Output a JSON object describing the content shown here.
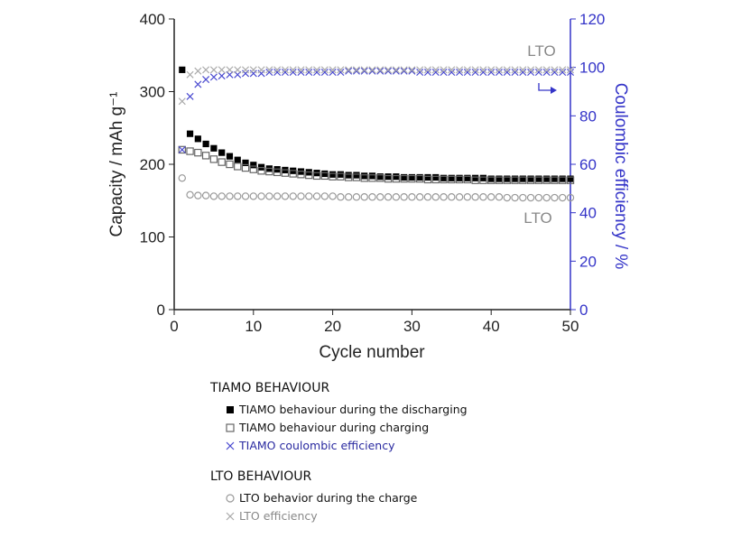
{
  "chart_data": {
    "type": "scatter",
    "x_label": "Cycle number",
    "y_label": "Capacity / mAh g⁻¹",
    "y2_label": "Coulombic efficiency / %",
    "y2_color": "#3434c8",
    "xlim": [
      0,
      50
    ],
    "xticks": [
      0,
      10,
      20,
      30,
      40,
      50
    ],
    "ylim": [
      0,
      400
    ],
    "yticks": [
      0,
      100,
      200,
      300,
      400
    ],
    "y2lim": [
      0,
      120
    ],
    "y2ticks": [
      0,
      20,
      40,
      60,
      80,
      100,
      120
    ],
    "annotations": [
      "LTO",
      "LTO"
    ],
    "x": [
      1,
      2,
      3,
      4,
      5,
      6,
      7,
      8,
      9,
      10,
      11,
      12,
      13,
      14,
      15,
      16,
      17,
      18,
      19,
      20,
      21,
      22,
      23,
      24,
      25,
      26,
      27,
      28,
      29,
      30,
      31,
      32,
      33,
      34,
      35,
      36,
      37,
      38,
      39,
      40,
      41,
      42,
      43,
      44,
      45,
      46,
      47,
      48,
      49,
      50
    ],
    "legend_groups": [
      {
        "title": "TIAMO BEHAVIOUR",
        "series": [
          0,
          1,
          2
        ]
      },
      {
        "title": "LTO BEHAVIOUR",
        "series": [
          3,
          4
        ]
      }
    ],
    "series": [
      {
        "name": "TIAMO behaviour during the discharging",
        "marker": "square-filled",
        "color": "#000000",
        "label_color": "#111111",
        "values": [
          330,
          242,
          235,
          228,
          222,
          216,
          211,
          206,
          202,
          199,
          196,
          194,
          193,
          192,
          191,
          190,
          189,
          188,
          187,
          186,
          186,
          185,
          185,
          184,
          184,
          183,
          183,
          183,
          182,
          182,
          182,
          182,
          182,
          181,
          181,
          181,
          181,
          181,
          181,
          180,
          180,
          180,
          180,
          180,
          180,
          180,
          180,
          180,
          180,
          180
        ]
      },
      {
        "name": "TIAMO behaviour during charging",
        "marker": "square-open",
        "color": "#666666",
        "label_color": "#111111",
        "values": [
          220,
          218,
          216,
          212,
          207,
          203,
          200,
          197,
          195,
          193,
          191,
          190,
          189,
          188,
          187,
          186,
          185,
          184,
          184,
          183,
          183,
          182,
          182,
          181,
          181,
          181,
          180,
          180,
          180,
          180,
          180,
          179,
          179,
          179,
          179,
          179,
          179,
          178,
          178,
          178,
          178,
          178,
          178,
          178,
          178,
          178,
          178,
          178,
          178,
          178
        ]
      },
      {
        "name": "TIAMO coulombic efficiency",
        "marker": "x",
        "color": "#4a4ad0",
        "label_color": "#2a2aa0",
        "axis": "y2",
        "values": [
          66,
          88,
          93,
          95,
          96,
          96.5,
          97,
          97,
          97.5,
          97.5,
          97.5,
          98,
          98,
          98,
          98,
          98,
          98,
          98,
          98,
          98,
          98,
          98.5,
          98.5,
          98.5,
          98.5,
          98.5,
          98.5,
          98.5,
          98.5,
          98.5,
          98,
          98,
          98,
          98,
          98,
          98,
          98,
          98,
          98,
          98,
          98,
          98,
          98,
          98,
          98,
          98,
          98,
          98,
          98,
          98
        ]
      },
      {
        "name": "LTO behavior during the charge",
        "marker": "circle",
        "color": "#999999",
        "label_color": "#111111",
        "values": [
          181,
          158,
          157,
          157,
          156,
          156,
          156,
          156,
          156,
          156,
          156,
          156,
          156,
          156,
          156,
          156,
          156,
          156,
          156,
          156,
          155,
          155,
          155,
          155,
          155,
          155,
          155,
          155,
          155,
          155,
          155,
          155,
          155,
          155,
          155,
          155,
          155,
          155,
          155,
          155,
          155,
          154,
          154,
          154,
          154,
          154,
          154,
          154,
          154,
          154
        ]
      },
      {
        "name": "LTO efficiency",
        "marker": "x",
        "color": "#aaaaaa",
        "label_color": "#888888",
        "axis": "y2",
        "values": [
          86,
          97,
          98.5,
          99,
          99,
          99,
          99,
          99,
          99,
          99,
          99,
          99,
          99,
          99,
          99,
          99,
          99,
          99,
          99,
          99,
          99,
          99,
          99,
          99,
          99,
          99,
          99,
          99,
          99,
          99,
          99,
          99,
          99,
          99,
          99,
          99,
          99,
          99,
          99,
          99,
          99,
          99,
          99,
          99,
          99,
          99,
          99,
          99,
          99,
          99
        ]
      }
    ]
  }
}
